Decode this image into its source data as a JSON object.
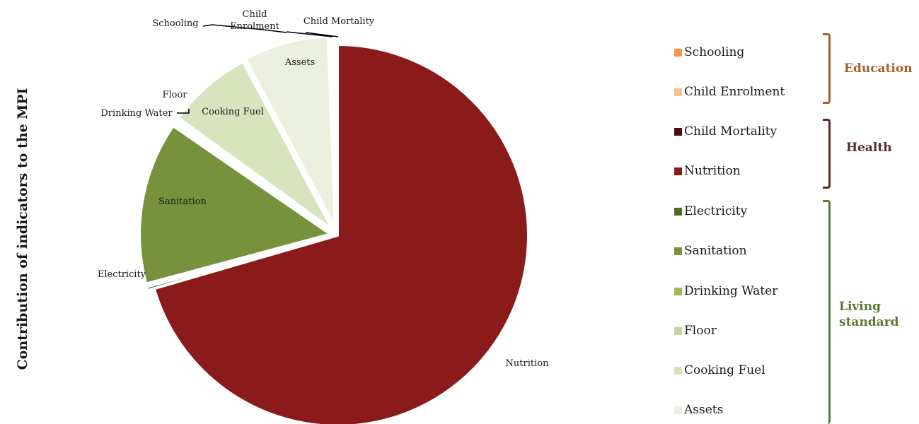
{
  "chart_data": {
    "type": "pie",
    "ylabel": "Contribution of indicators to the MPI",
    "slices": [
      {
        "name": "Nutrition",
        "value": 70.5,
        "color": "#8B1A1A",
        "label": "Nutrition"
      },
      {
        "name": "Electricity",
        "value": 0.3,
        "color": "#4F6B2A",
        "label": "Electricity"
      },
      {
        "name": "Sanitation",
        "value": 13.8,
        "color": "#76923C",
        "label": "Sanitation"
      },
      {
        "name": "Drinking Water",
        "value": 0.2,
        "color": "#9BBB59",
        "label": "Drinking Water"
      },
      {
        "name": "Floor",
        "value": 0.2,
        "color": "#C3D69B",
        "label": "Floor"
      },
      {
        "name": "Cooking Fuel",
        "value": 7.2,
        "color": "#D7E4BD",
        "label": "Cooking Fuel"
      },
      {
        "name": "Assets",
        "value": 7.2,
        "color": "#EBF1DE",
        "label": "Assets"
      },
      {
        "name": "Schooling",
        "value": 0.2,
        "color": "#F79646",
        "label": "Schooling"
      },
      {
        "name": "Child Enrolment",
        "value": 0.2,
        "color": "#FAC090",
        "label": "Child\nEnrolment"
      },
      {
        "name": "Child Mortality",
        "value": 0.2,
        "color": "#4A1010",
        "label": "Child Mortality"
      }
    ],
    "legend": [
      {
        "name": "Schooling",
        "color": "#F79646"
      },
      {
        "name": "Child Enrolment",
        "color": "#FAC090"
      },
      {
        "name": "Child Mortality",
        "color": "#4A1010"
      },
      {
        "name": "Nutrition",
        "color": "#8B1A1A"
      },
      {
        "name": "Electricity",
        "color": "#4F6B2A"
      },
      {
        "name": "Sanitation",
        "color": "#76923C"
      },
      {
        "name": "Drinking Water",
        "color": "#9BBB59"
      },
      {
        "name": "Floor",
        "color": "#C3D69B"
      },
      {
        "name": "Cooking Fuel",
        "color": "#D7E4BD"
      },
      {
        "name": "Assets",
        "color": "#EBF1DE"
      }
    ],
    "groups": [
      {
        "name": "Education",
        "color": "#A0622D",
        "members": [
          "Schooling",
          "Child Enrolment"
        ]
      },
      {
        "name": "Health",
        "color": "#5C2A2A",
        "members": [
          "Child Mortality",
          "Nutrition"
        ]
      },
      {
        "name": "Living standard",
        "color": "#5A7A33",
        "members": [
          "Electricity",
          "Sanitation",
          "Drinking Water",
          "Floor",
          "Cooking Fuel",
          "Assets"
        ]
      }
    ]
  }
}
